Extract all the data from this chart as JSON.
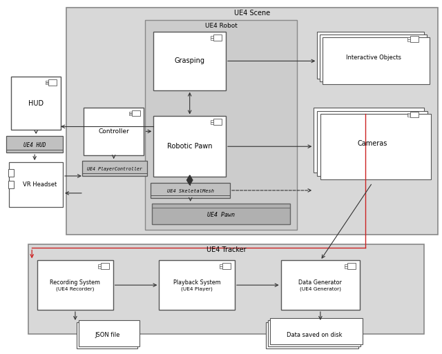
{
  "fig_width": 6.4,
  "fig_height": 5.13,
  "bg_color": "#ffffff",
  "scene_bg": "#d8d8d8",
  "robot_bg": "#c8c8c8",
  "tracker_bg": "#d8d8d8",
  "pawn_bg": "#b8b8b8",
  "tabbed_bg": "#c0c0c0",
  "box_white": "#ffffff",
  "edge_dark": "#555555",
  "edge_gray": "#888888",
  "red_line": "#cc2222",
  "title_scene": "UE4 Scene",
  "title_robot": "UE4 Robot",
  "title_tracker": "UE4 Tracker"
}
